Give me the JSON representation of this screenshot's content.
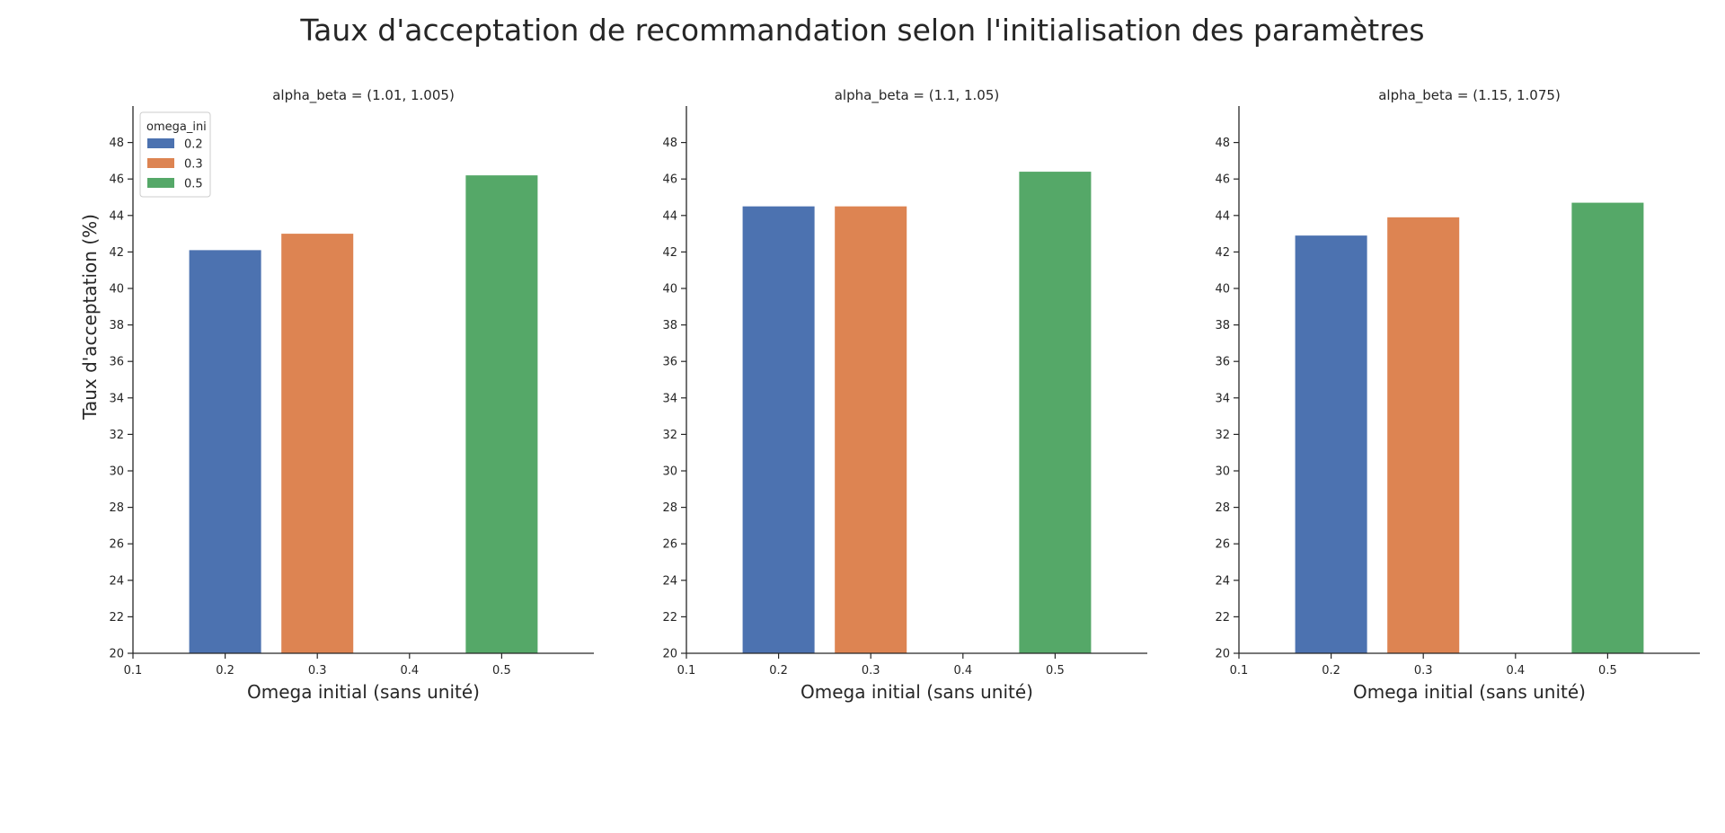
{
  "title": "Taux d'acceptation de recommandation selon l'initialisation des paramètres",
  "chart_data": {
    "type": "bar",
    "xlabel": "Omega initial (sans unité)",
    "ylabel": "Taux d'acceptation (%)",
    "xlim": [
      0.1,
      0.6
    ],
    "ylim": [
      20,
      50
    ],
    "xticks": [
      "0.1",
      "0.2",
      "0.3",
      "0.4",
      "0.5"
    ],
    "yticks": [
      "20",
      "22",
      "24",
      "26",
      "28",
      "30",
      "32",
      "34",
      "36",
      "38",
      "40",
      "42",
      "44",
      "46",
      "48"
    ],
    "legend": {
      "title": "omega_ini",
      "placement": "upper-left",
      "entries": [
        {
          "label": "0.2",
          "color": "#4c72b0"
        },
        {
          "label": "0.3",
          "color": "#dd8452"
        },
        {
          "label": "0.5",
          "color": "#55a868"
        }
      ]
    },
    "grid": false,
    "panels": [
      {
        "title": "alpha_beta = (1.01, 1.005)",
        "bars": [
          {
            "x": 0.2,
            "value": 42.1,
            "series": "0.2"
          },
          {
            "x": 0.3,
            "value": 43.0,
            "series": "0.3"
          },
          {
            "x": 0.5,
            "value": 46.2,
            "series": "0.5"
          }
        ]
      },
      {
        "title": "alpha_beta = (1.1, 1.05)",
        "bars": [
          {
            "x": 0.2,
            "value": 44.5,
            "series": "0.2"
          },
          {
            "x": 0.3,
            "value": 44.5,
            "series": "0.3"
          },
          {
            "x": 0.5,
            "value": 46.4,
            "series": "0.5"
          }
        ]
      },
      {
        "title": "alpha_beta = (1.15, 1.075)",
        "bars": [
          {
            "x": 0.2,
            "value": 42.9,
            "series": "0.2"
          },
          {
            "x": 0.3,
            "value": 43.9,
            "series": "0.3"
          },
          {
            "x": 0.5,
            "value": 44.7,
            "series": "0.5"
          }
        ]
      }
    ]
  }
}
